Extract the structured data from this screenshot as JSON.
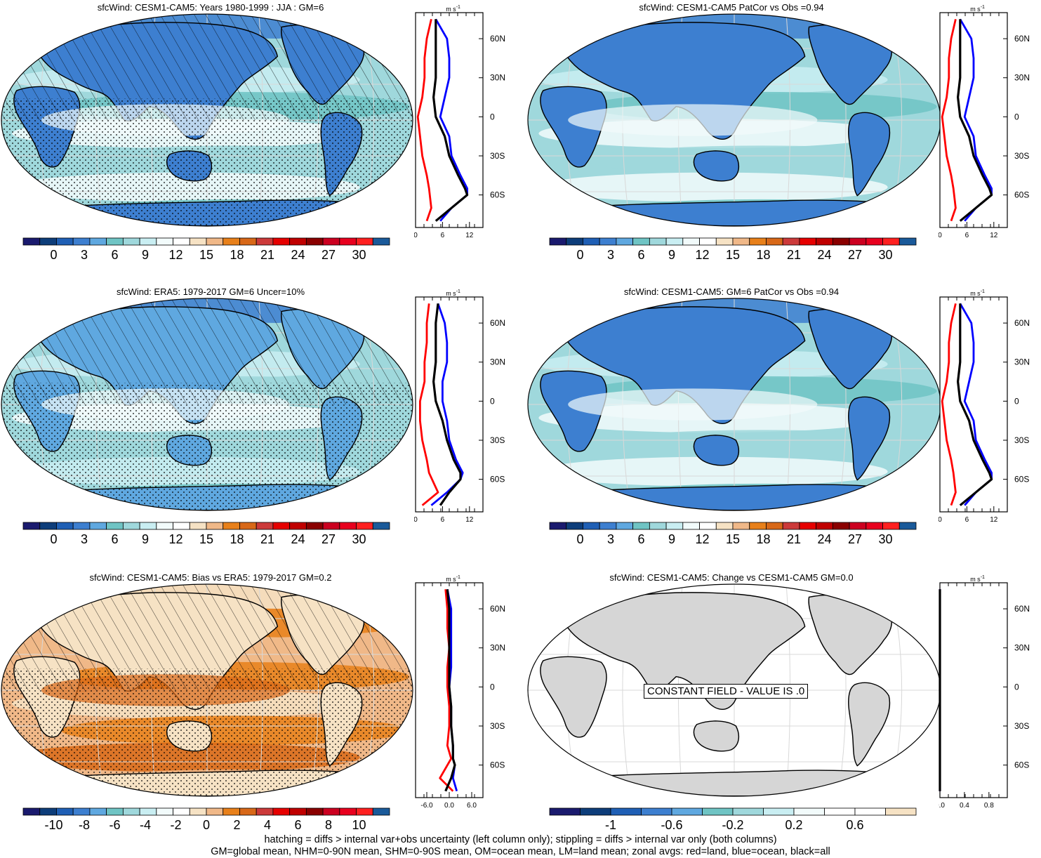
{
  "palette_main": [
    "#1a1a6e",
    "#0d3d7a",
    "#1f5fb5",
    "#3d7fd0",
    "#5fa8e0",
    "#6fc4c4",
    "#9fd8dc",
    "#c9eef2",
    "#f2fbfb",
    "#ffffff",
    "#f6e2c4",
    "#f0b888",
    "#e8801a",
    "#d86818",
    "#cc3a3a",
    "#e60000",
    "#c00000",
    "#8a0000",
    "#cc0020",
    "#e8001e",
    "#ff2020",
    "#1a5a9a"
  ],
  "palette_change": [
    "#1a1a6e",
    "#0d3d7a",
    "#1f5fb5",
    "#3d7fd0",
    "#5fa8e0",
    "#6fc4c4",
    "#9fd8dc",
    "#c9eef2",
    "#f2fbfb",
    "#ffffff",
    "#ffffff",
    "#f6e2c4"
  ],
  "colors": {
    "land_line": "#ff0000",
    "ocean_line": "#0000ff",
    "all_line": "#000000",
    "const_land": "#d6d6d6"
  },
  "panels": [
    {
      "title": "sfcWind: CESM1-CAM5: Years 1980-1999 : JJA : GM=6",
      "map_style": "model",
      "hatch": true,
      "stipple": true,
      "colorbar": {
        "labels": [
          "0",
          "3",
          "6",
          "9",
          "12",
          "15",
          "18",
          "21",
          "24",
          "27",
          "30"
        ]
      },
      "zonal": {
        "unit": "m s",
        "unit_exp": "-1",
        "x_ticks": [
          "0",
          "6",
          "12"
        ],
        "x_range": [
          0,
          15
        ],
        "y_ticks": [
          "60N",
          "30N",
          "0",
          "30S",
          "60S"
        ],
        "y_tick_values": [
          60,
          30,
          0,
          -30,
          -60
        ],
        "y_range": [
          80,
          -85
        ]
      }
    },
    {
      "title": "sfcWind: CESM1-CAM5 PatCor vs Obs =0.94",
      "map_style": "model",
      "hatch": false,
      "stipple": false,
      "colorbar": {
        "labels": [
          "0",
          "3",
          "6",
          "9",
          "12",
          "15",
          "18",
          "21",
          "24",
          "27",
          "30"
        ]
      },
      "zonal": {
        "unit": "m s",
        "unit_exp": "-1",
        "x_ticks": [
          "0",
          "6",
          "12"
        ],
        "x_range": [
          0,
          15
        ],
        "y_ticks": [
          "60N",
          "30N",
          "0",
          "30S",
          "60S"
        ],
        "y_tick_values": [
          60,
          30,
          0,
          -30,
          -60
        ],
        "y_range": [
          80,
          -85
        ]
      }
    },
    {
      "title": "sfcWind: ERA5: 1979-2017 GM=6 Uncer=10%",
      "map_style": "obs",
      "hatch": true,
      "stipple": true,
      "colorbar": {
        "labels": [
          "0",
          "3",
          "6",
          "9",
          "12",
          "15",
          "18",
          "21",
          "24",
          "27",
          "30"
        ]
      },
      "zonal": {
        "unit": "m s",
        "unit_exp": "-1",
        "x_ticks": [
          "0",
          "6",
          "12"
        ],
        "x_range": [
          0,
          15
        ],
        "y_ticks": [
          "60N",
          "30N",
          "0",
          "30S",
          "60S"
        ],
        "y_tick_values": [
          60,
          30,
          0,
          -30,
          -60
        ],
        "y_range": [
          80,
          -85
        ]
      }
    },
    {
      "title": "sfcWind: CESM1-CAM5: GM=6 PatCor vs Obs =0.94",
      "map_style": "model",
      "hatch": false,
      "stipple": false,
      "colorbar": {
        "labels": [
          "0",
          "3",
          "6",
          "9",
          "12",
          "15",
          "18",
          "21",
          "24",
          "27",
          "30"
        ]
      },
      "zonal": {
        "unit": "m s",
        "unit_exp": "-1",
        "x_ticks": [
          "0",
          "6",
          "12"
        ],
        "x_range": [
          0,
          15
        ],
        "y_ticks": [
          "60N",
          "30N",
          "0",
          "30S",
          "60S"
        ],
        "y_tick_values": [
          60,
          30,
          0,
          -30,
          -60
        ],
        "y_range": [
          80,
          -85
        ]
      }
    },
    {
      "title": "sfcWind: CESM1-CAM5: Bias vs ERA5: 1979-2017 GM=0.2",
      "map_style": "bias",
      "hatch": true,
      "stipple": true,
      "colorbar": {
        "labels": [
          "-10",
          "-8",
          "-6",
          "-4",
          "-2",
          "0",
          "2",
          "4",
          "6",
          "8",
          "10"
        ]
      },
      "zonal": {
        "unit": "m s",
        "unit_exp": "-1",
        "x_ticks": [
          "-6.0",
          "0.0",
          "6.0"
        ],
        "x_range": [
          -9,
          9
        ],
        "y_ticks": [
          "60N",
          "30N",
          "0",
          "30S",
          "60S"
        ],
        "y_tick_values": [
          60,
          30,
          0,
          -30,
          -60
        ],
        "y_range": [
          80,
          -85
        ]
      }
    },
    {
      "title": "sfcWind: CESM1-CAM5: Change vs CESM1-CAM5 GM=0.0",
      "map_style": "constant",
      "hatch": false,
      "stipple": false,
      "constant_label": "CONSTANT FIELD - VALUE IS .0",
      "colorbar": {
        "labels": [
          "-1",
          "-0.6",
          "-0.2",
          "0.2",
          "0.6"
        ]
      },
      "zonal": {
        "unit": "m s",
        "unit_exp": "-1",
        "x_ticks": [
          "0.0",
          "0.4",
          "0.8"
        ],
        "x_range": [
          0,
          1.1
        ],
        "y_ticks": [
          "60N",
          "30N",
          "0",
          "30S",
          "60S"
        ],
        "y_tick_values": [
          60,
          30,
          0,
          -30,
          -60
        ],
        "y_range": [
          80,
          -85
        ]
      }
    }
  ],
  "chart_data": [
    {
      "type": "line",
      "title": "sfcWind: CESM1-CAM5: Years 1980-1999 : JJA : GM=6",
      "xlabel": "m s-1",
      "xlim": [
        0,
        15
      ],
      "ylim": [
        -85,
        80
      ],
      "y": [
        75,
        60,
        45,
        30,
        15,
        0,
        -15,
        -30,
        -45,
        -55,
        -60,
        -70,
        -80
      ],
      "series": [
        {
          "name": "land",
          "color": "#ff0000",
          "values": [
            3.5,
            2.5,
            2.0,
            2.0,
            1.5,
            0.5,
            1.0,
            1.5,
            2.5,
            3.0,
            null,
            3.5,
            2.5
          ]
        },
        {
          "name": "ocean",
          "color": "#0000ff",
          "values": [
            4.5,
            7.0,
            7.5,
            7.5,
            6.5,
            5.5,
            7.5,
            8.0,
            10.0,
            11.5,
            11.5,
            8.0,
            5.5
          ]
        },
        {
          "name": "all",
          "color": "#000000",
          "values": [
            4.5,
            4.5,
            4.5,
            4.5,
            4.0,
            4.5,
            6.5,
            7.5,
            9.5,
            11.0,
            11.5,
            8.0,
            4.5
          ]
        }
      ]
    },
    {
      "type": "line",
      "title": "sfcWind: CESM1-CAM5 PatCor vs Obs =0.94",
      "xlabel": "m s-1",
      "xlim": [
        0,
        15
      ],
      "ylim": [
        -85,
        80
      ],
      "y": [
        75,
        60,
        45,
        30,
        15,
        0,
        -15,
        -30,
        -45,
        -55,
        -60,
        -70,
        -80
      ],
      "series": [
        {
          "name": "land",
          "color": "#ff0000",
          "values": [
            3.5,
            2.5,
            2.0,
            2.0,
            1.5,
            0.5,
            1.0,
            1.5,
            2.5,
            3.0,
            null,
            3.5,
            2.5
          ]
        },
        {
          "name": "ocean",
          "color": "#0000ff",
          "values": [
            4.5,
            7.0,
            7.5,
            7.5,
            6.5,
            5.5,
            7.5,
            8.0,
            10.0,
            11.5,
            11.5,
            8.0,
            5.5
          ]
        },
        {
          "name": "all",
          "color": "#000000",
          "values": [
            4.5,
            4.5,
            4.5,
            4.5,
            4.0,
            4.5,
            6.5,
            7.5,
            9.5,
            11.0,
            11.5,
            8.0,
            4.5
          ]
        }
      ]
    },
    {
      "type": "line",
      "title": "sfcWind: ERA5: 1979-2017 GM=6 Uncer=10%",
      "xlabel": "m s-1",
      "xlim": [
        0,
        15
      ],
      "ylim": [
        -85,
        80
      ],
      "y": [
        75,
        60,
        45,
        30,
        15,
        0,
        -15,
        -30,
        -45,
        -55,
        -60,
        -70,
        -80
      ],
      "series": [
        {
          "name": "land",
          "color": "#ff0000",
          "values": [
            3.0,
            2.5,
            2.5,
            2.0,
            2.0,
            1.0,
            1.0,
            1.5,
            2.5,
            3.0,
            null,
            5.0,
            1.5
          ]
        },
        {
          "name": "ocean",
          "color": "#0000ff",
          "values": [
            5.0,
            6.5,
            7.0,
            7.0,
            6.0,
            6.0,
            7.0,
            7.5,
            9.0,
            10.5,
            10.0,
            7.0,
            3.5
          ]
        },
        {
          "name": "all",
          "color": "#000000",
          "values": [
            5.0,
            4.5,
            4.5,
            4.5,
            4.0,
            4.5,
            6.0,
            7.0,
            8.5,
            10.0,
            10.0,
            7.5,
            5.5
          ]
        }
      ]
    },
    {
      "type": "line",
      "title": "sfcWind: CESM1-CAM5: GM=6 PatCor vs Obs =0.94",
      "xlabel": "m s-1",
      "xlim": [
        0,
        15
      ],
      "ylim": [
        -85,
        80
      ],
      "y": [
        75,
        60,
        45,
        30,
        15,
        0,
        -15,
        -30,
        -45,
        -55,
        -60,
        -70,
        -80
      ],
      "series": [
        {
          "name": "land",
          "color": "#ff0000",
          "values": [
            3.5,
            2.5,
            2.0,
            2.0,
            1.5,
            0.5,
            1.0,
            1.5,
            2.5,
            3.0,
            null,
            3.5,
            2.5
          ]
        },
        {
          "name": "ocean",
          "color": "#0000ff",
          "values": [
            4.5,
            7.0,
            7.5,
            7.5,
            6.5,
            5.5,
            7.5,
            8.0,
            10.0,
            11.5,
            11.5,
            8.0,
            5.5
          ]
        },
        {
          "name": "all",
          "color": "#000000",
          "values": [
            4.5,
            4.5,
            4.5,
            4.5,
            4.0,
            4.5,
            6.5,
            7.5,
            9.5,
            11.0,
            11.5,
            8.0,
            4.5
          ]
        }
      ]
    },
    {
      "type": "line",
      "title": "sfcWind: CESM1-CAM5: Bias vs ERA5: 1979-2017 GM=0.2",
      "xlabel": "m s-1",
      "xlim": [
        -9,
        9
      ],
      "ylim": [
        -85,
        80
      ],
      "y": [
        75,
        60,
        45,
        30,
        15,
        0,
        -15,
        -30,
        -45,
        -55,
        -60,
        -70,
        -80
      ],
      "series": [
        {
          "name": "land",
          "color": "#ff0000",
          "values": [
            -1.0,
            -0.5,
            -0.5,
            0.0,
            -0.5,
            -0.5,
            0.0,
            0.0,
            -0.5,
            0.5,
            null,
            -2.5,
            1.0
          ]
        },
        {
          "name": "ocean",
          "color": "#0000ff",
          "values": [
            -0.5,
            0.5,
            0.5,
            0.5,
            0.5,
            0.0,
            0.5,
            0.5,
            1.0,
            1.0,
            1.5,
            1.0,
            2.0
          ]
        },
        {
          "name": "all",
          "color": "#000000",
          "values": [
            -0.5,
            0.0,
            0.0,
            0.0,
            0.0,
            0.0,
            0.5,
            0.5,
            1.0,
            1.0,
            1.5,
            0.5,
            -1.0
          ]
        }
      ]
    },
    {
      "type": "line",
      "title": "sfcWind: CESM1-CAM5: Change vs CESM1-CAM5 GM=0.0",
      "xlabel": "m s-1",
      "xlim": [
        0,
        1.1
      ],
      "ylim": [
        -85,
        80
      ],
      "y": [
        75,
        60,
        45,
        30,
        15,
        0,
        -15,
        -30,
        -45,
        -55,
        -60,
        -70,
        -80
      ],
      "series": [
        {
          "name": "land",
          "color": "#ff0000",
          "values": [
            0,
            0,
            0,
            0,
            0,
            0,
            0,
            0,
            0,
            0,
            0,
            0,
            0
          ]
        },
        {
          "name": "ocean",
          "color": "#0000ff",
          "values": [
            0,
            0,
            0,
            0,
            0,
            0,
            0,
            0,
            0,
            0,
            0,
            0,
            0
          ]
        },
        {
          "name": "all",
          "color": "#000000",
          "values": [
            0,
            0,
            0,
            0,
            0,
            0,
            0,
            0,
            0,
            0,
            0,
            0,
            0
          ]
        }
      ]
    }
  ],
  "footer": {
    "line1": "hatching = diffs > internal var+obs uncertainty (left column only); stippling = diffs > internal var only (both columns)",
    "line2": "GM=global mean, NHM=0-90N mean, SHM=0-90S mean, OM=ocean mean, LM=land mean; zonal avgs: red=land, blue=ocean, black=all"
  }
}
